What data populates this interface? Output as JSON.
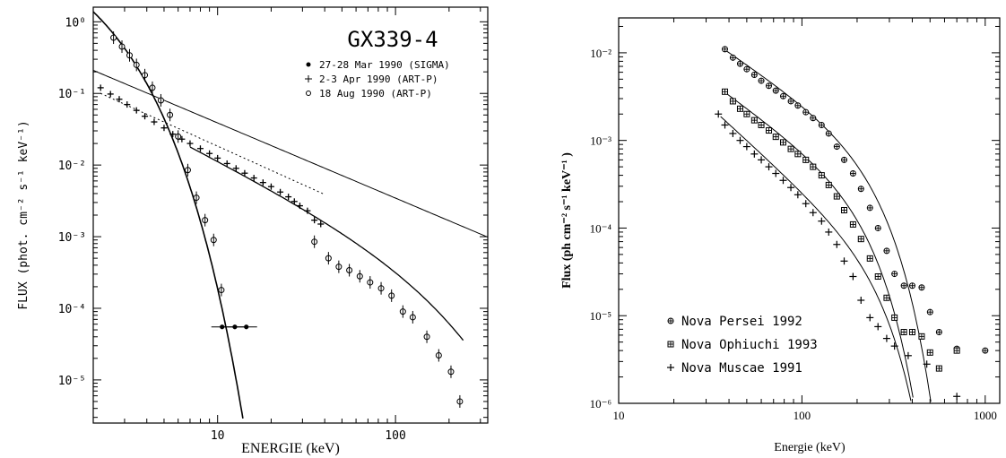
{
  "chart_data": [
    {
      "type": "scatter",
      "title": "GX339-4",
      "xlabel": "ENERGIE (keV)",
      "ylabel": "FLUX (phot. cm⁻² s⁻¹ keV⁻¹)",
      "xscale": "log",
      "yscale": "log",
      "xlim": [
        2,
        330
      ],
      "ylim": [
        2.5e-06,
        1.6
      ],
      "x_tick_labels": [
        "10",
        "100"
      ],
      "x_ticks": [
        10,
        100
      ],
      "y_tick_labels": [
        "10⁰",
        "10⁻¹",
        "10⁻²",
        "10⁻³",
        "10⁻⁴",
        "10⁻⁵"
      ],
      "y_ticks": [
        1,
        0.1,
        0.01,
        0.001,
        0.0001,
        1e-05
      ],
      "legend_position": "top-right",
      "series": [
        {
          "name": "27-28 Mar 1990 (SIGMA)",
          "marker": "circle",
          "x": [
            10.6,
            12.5,
            14.5
          ],
          "y": [
            5.5e-05,
            5.5e-05,
            5.5e-05
          ]
        },
        {
          "name": "2-3 Apr 1990 (ART-P)",
          "marker": "cross",
          "x": [
            2.2,
            2.5,
            2.8,
            3.1,
            3.5,
            3.9,
            4.4,
            5.0,
            5.6,
            6.3,
            7.0,
            8.0,
            9.0,
            10.0,
            11.3,
            12.7,
            14.2,
            16.0,
            18.0,
            20.0,
            22.5,
            25.0,
            27.0,
            29.0,
            32.0,
            35.0,
            38.0
          ],
          "y": [
            0.12,
            0.098,
            0.083,
            0.07,
            0.058,
            0.048,
            0.04,
            0.033,
            0.027,
            0.023,
            0.02,
            0.017,
            0.0145,
            0.0125,
            0.0105,
            0.009,
            0.0077,
            0.0066,
            0.0057,
            0.005,
            0.0042,
            0.0036,
            0.0031,
            0.0027,
            0.0023,
            0.0017,
            0.0015
          ]
        },
        {
          "name": "18 Aug 1990 (ART-P)",
          "marker": "open-circle",
          "x": [
            2.6,
            2.9,
            3.2,
            3.5,
            3.9,
            4.3,
            4.8,
            5.4,
            6.0,
            6.8,
            7.6,
            8.5,
            9.5,
            10.5,
            35.0,
            42.0,
            48.0,
            55.0,
            63.0,
            72.0,
            83.0,
            95.0,
            110.0,
            125.0,
            150.0,
            175.0,
            205.0,
            230.0
          ],
          "y": [
            0.6,
            0.45,
            0.34,
            0.25,
            0.18,
            0.12,
            0.08,
            0.05,
            0.025,
            0.0085,
            0.0035,
            0.0017,
            0.0009,
            0.00018,
            0.00085,
            0.0005,
            0.00038,
            0.00034,
            0.00028,
            0.00023,
            0.00019,
            0.00015,
            9e-05,
            7.5e-05,
            4e-05,
            2.2e-05,
            1.3e-05,
            5e-06
          ]
        }
      ]
    },
    {
      "type": "scatter",
      "xlabel": "Energie (keV)",
      "ylabel": "Flux (ph cm⁻² s⁻¹ keV⁻¹ )",
      "xscale": "log",
      "yscale": "log",
      "xlim": [
        10,
        1200
      ],
      "ylim": [
        1e-06,
        0.025
      ],
      "x_tick_labels": [
        "10",
        "100",
        "1000"
      ],
      "x_ticks": [
        10,
        100,
        1000
      ],
      "y_tick_labels": [
        "10⁻²",
        "10⁻³",
        "10⁻⁴",
        "10⁻⁵",
        "10⁻⁶"
      ],
      "y_ticks": [
        0.01,
        0.001,
        0.0001,
        1e-05,
        1e-06
      ],
      "legend_position": "bottom-left",
      "series": [
        {
          "name": "Nova Persei 1992",
          "marker": "circle-cross",
          "x": [
            38,
            42,
            46,
            50,
            55,
            60,
            66,
            72,
            79,
            87,
            95,
            105,
            115,
            128,
            140,
            155,
            170,
            190,
            210,
            235,
            260,
            290,
            320,
            360,
            400,
            450,
            500,
            560,
            700,
            1000
          ],
          "y": [
            0.011,
            0.0088,
            0.0075,
            0.0065,
            0.0056,
            0.0048,
            0.0042,
            0.0037,
            0.0032,
            0.0028,
            0.0025,
            0.0021,
            0.0018,
            0.0015,
            0.0012,
            0.00085,
            0.0006,
            0.00042,
            0.00028,
            0.00017,
            0.0001,
            5.5e-05,
            3e-05,
            2.2e-05,
            2.2e-05,
            2.1e-05,
            1.1e-05,
            6.5e-06,
            4.2e-06,
            4e-06
          ]
        },
        {
          "name": "Nova Ophiuchi 1993",
          "marker": "square-cross",
          "x": [
            38,
            42,
            46,
            50,
            55,
            60,
            66,
            72,
            79,
            87,
            95,
            105,
            115,
            128,
            140,
            155,
            170,
            190,
            210,
            235,
            260,
            290,
            320,
            360,
            400,
            450,
            500,
            560,
            700
          ],
          "y": [
            0.0036,
            0.0028,
            0.0023,
            0.002,
            0.0017,
            0.0015,
            0.0013,
            0.0011,
            0.00095,
            0.0008,
            0.0007,
            0.0006,
            0.0005,
            0.0004,
            0.00031,
            0.00023,
            0.00016,
            0.00011,
            7.5e-05,
            4.5e-05,
            2.8e-05,
            1.6e-05,
            9.5e-06,
            6.5e-06,
            6.5e-06,
            5.8e-06,
            3.8e-06,
            2.5e-06,
            4e-06
          ]
        },
        {
          "name": "Nova Muscae 1991",
          "marker": "plus",
          "x": [
            35,
            38,
            42,
            46,
            50,
            55,
            60,
            66,
            72,
            79,
            87,
            95,
            105,
            115,
            128,
            140,
            155,
            170,
            190,
            210,
            235,
            260,
            290,
            320,
            380,
            480,
            700
          ],
          "y": [
            0.002,
            0.0015,
            0.0012,
            0.001,
            0.00085,
            0.0007,
            0.0006,
            0.0005,
            0.00042,
            0.00035,
            0.00029,
            0.00024,
            0.00019,
            0.00015,
            0.00012,
            9e-05,
            6.5e-05,
            4.2e-05,
            2.8e-05,
            1.5e-05,
            9.5e-06,
            7.5e-06,
            5.5e-06,
            4.5e-06,
            3.5e-06,
            2.8e-06,
            1.2e-06
          ]
        }
      ]
    }
  ]
}
